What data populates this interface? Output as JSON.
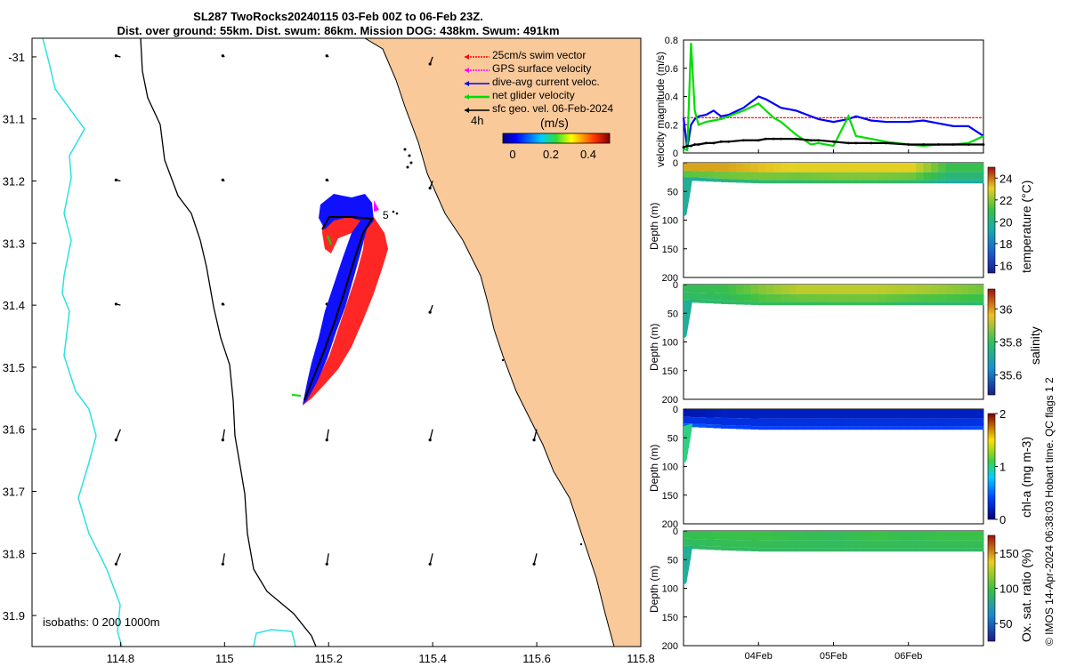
{
  "title": {
    "line1": "SL287 TwoRocks20240115 03-Feb 00Z to 06-Feb 23Z.",
    "line2": "Dist. over ground: 55km. Dist. swum: 86km. Mission DOG: 438km. Swum: 491km"
  },
  "footer_note": "© IMOS 14-Apr-2024 06:38:03 Hobart time. QC flags 1  2",
  "colors": {
    "land": "#f9c99a",
    "coast": "#000000",
    "isobath_0": "#000000",
    "isobath_200": "#000000",
    "isobath_1000": "#2fe0e0",
    "swim": "#ff0000",
    "gps": "#ff00ff",
    "current": "#0000ff",
    "net": "#00dd00",
    "geo": "#000000",
    "profile_mean": "#000000"
  },
  "map": {
    "xaxis": {
      "ticks": [
        114.8,
        115,
        115.2,
        115.4,
        115.6,
        115.8
      ],
      "labels": [
        "114.8",
        "115",
        "115.2",
        "115.4",
        "115.6",
        "115.8"
      ],
      "range": [
        114.63,
        115.8
      ]
    },
    "yaxis": {
      "ticks": [
        -31,
        -31.1,
        -31.2,
        -31.3,
        -31.4,
        -31.5,
        -31.6,
        -31.7,
        -31.8,
        -31.9
      ],
      "labels": [
        "-31",
        "31.1",
        "31.2",
        "31.3",
        "31.4",
        "31.5",
        "31.6",
        "31.7",
        "31.8",
        "31.9"
      ],
      "range": [
        -31.95,
        -30.97
      ]
    },
    "legend": [
      "25cm/s swim vector",
      "GPS surface velocity",
      "dive-avg current veloc.",
      "net glider velocity",
      "sfc geo. vel. 06-Feb-2024"
    ],
    "colorbar": {
      "title": "(m/s)",
      "ticks": [
        "0",
        "0.2",
        "0.4"
      ],
      "range": [
        0,
        0.5
      ]
    },
    "time_step_label": "4h",
    "marker_label": "5",
    "isobaths_label": "isobaths: 0   200  1000m"
  },
  "chart_data": [
    {
      "type": "line",
      "title": "",
      "ylabel": "velocity magnitude (m/s)",
      "ylim": [
        0,
        0.8
      ],
      "yticks": [
        "0",
        "0.2",
        "0.4",
        "0.6",
        "0.8"
      ],
      "x_days": [
        0,
        0.05,
        0.1,
        0.15,
        0.2,
        0.3,
        0.4,
        0.5,
        0.6,
        0.8,
        1.0,
        1.1,
        1.2,
        1.3,
        1.5,
        1.7,
        1.8,
        2.0,
        2.2,
        2.3,
        2.5,
        2.7,
        3.0,
        3.2,
        3.4,
        3.6,
        3.8,
        4.0
      ],
      "series": [
        {
          "color": "#ff0000",
          "values": [
            0.25,
            0.25,
            0.25,
            0.25,
            0.25,
            0.25,
            0.25,
            0.25,
            0.25,
            0.25,
            0.25,
            0.25,
            0.25,
            0.25,
            0.25,
            0.25,
            0.25,
            0.25,
            0.25,
            0.25,
            0.25,
            0.25,
            0.25,
            0.25,
            0.25,
            0.25,
            0.25,
            0.25
          ]
        },
        {
          "color": "#0000ff",
          "values": [
            0.25,
            0.03,
            0.2,
            0.24,
            0.26,
            0.27,
            0.3,
            0.26,
            0.27,
            0.32,
            0.4,
            0.38,
            0.35,
            0.32,
            0.3,
            0.26,
            0.24,
            0.22,
            0.24,
            0.26,
            0.23,
            0.22,
            0.22,
            0.23,
            0.21,
            0.19,
            0.19,
            0.12
          ]
        },
        {
          "color": "#00dd00",
          "values": [
            0.03,
            0.02,
            0.78,
            0.3,
            0.2,
            0.22,
            0.23,
            0.24,
            0.26,
            0.3,
            0.35,
            0.3,
            0.25,
            0.22,
            0.13,
            0.06,
            0.07,
            0.05,
            0.26,
            0.12,
            0.1,
            0.08,
            0.06,
            0.05,
            0.06,
            0.06,
            0.07,
            0.12
          ]
        },
        {
          "color": "#000000",
          "values": [
            0.04,
            0.05,
            0.05,
            0.06,
            0.06,
            0.07,
            0.07,
            0.08,
            0.08,
            0.09,
            0.09,
            0.1,
            0.1,
            0.1,
            0.1,
            0.09,
            0.09,
            0.08,
            0.07,
            0.07,
            0.07,
            0.07,
            0.06,
            0.06,
            0.06,
            0.06,
            0.06,
            0.06
          ]
        }
      ]
    },
    {
      "type": "heatmap",
      "title": "",
      "ylabel": "Depth (m)",
      "clabel": "temperature (°C)",
      "ylim": [
        0,
        200
      ],
      "yticks": [
        "0",
        "50",
        "100",
        "150",
        "200"
      ],
      "cticks": [
        "16",
        "18",
        "20",
        "22",
        "24"
      ],
      "crange": [
        15.3,
        25
      ],
      "x_days": [
        0,
        0.5,
        1,
        1.5,
        2,
        2.5,
        3,
        3.5,
        4
      ],
      "surface_values": [
        23.5,
        23.5,
        23.2,
        23.0,
        23.0,
        23.0,
        23.0,
        21.0,
        21.0
      ],
      "bottom_values": [
        19.5,
        20.0,
        20.5,
        20.5,
        20.8,
        20.8,
        20.5,
        19.5,
        19.5
      ],
      "mixed_depth": [
        25,
        28,
        30,
        30,
        30,
        30,
        30,
        30,
        30
      ]
    },
    {
      "type": "heatmap",
      "title": "",
      "ylabel": "Depth (m)",
      "clabel": "salinity",
      "ylim": [
        0,
        200
      ],
      "yticks": [
        "0",
        "50",
        "100",
        "150",
        "200"
      ],
      "cticks": [
        "35.6",
        "35.8",
        "36"
      ],
      "crange": [
        35.48,
        36.12
      ],
      "x_days": [
        0,
        0.5,
        1,
        1.5,
        2,
        2.5,
        3,
        3.5,
        4
      ],
      "surface_values": [
        35.84,
        35.86,
        35.92,
        35.96,
        35.96,
        35.96,
        35.95,
        35.93,
        35.9
      ],
      "bottom_values": [
        35.82,
        35.82,
        35.84,
        35.84,
        35.85,
        35.85,
        35.82,
        35.82,
        35.82
      ],
      "mixed_depth": [
        25,
        28,
        30,
        30,
        30,
        30,
        30,
        30,
        30
      ]
    },
    {
      "type": "heatmap",
      "title": "",
      "ylabel": "Depth (m)",
      "clabel": "chl-a (mg m-3)",
      "ylim": [
        0,
        200
      ],
      "yticks": [
        "0",
        "50",
        "100",
        "150",
        "200"
      ],
      "cticks": [
        "0",
        "1",
        "2"
      ],
      "crange": [
        0,
        2
      ],
      "x_days": [
        0,
        0.5,
        1,
        1.5,
        2,
        2.5,
        3,
        3.5,
        4
      ],
      "surface_values": [
        0.15,
        0.2,
        0.2,
        0.2,
        0.2,
        0.2,
        0.2,
        0.2,
        0.2
      ],
      "bottom_values": [
        0.5,
        0.4,
        0.4,
        0.4,
        0.4,
        0.4,
        0.4,
        0.4,
        0.45
      ],
      "mixed_depth": [
        25,
        28,
        30,
        30,
        30,
        30,
        30,
        30,
        30
      ]
    },
    {
      "type": "heatmap",
      "title": "",
      "ylabel": "Depth (m)",
      "clabel": "Ox. sat. ratio (%)",
      "ylim": [
        0,
        200
      ],
      "yticks": [
        "0",
        "50",
        "100",
        "150",
        "200"
      ],
      "cticks": [
        "50",
        "100",
        "150"
      ],
      "crange": [
        25,
        175
      ],
      "x_days": [
        0,
        0.5,
        1,
        1.5,
        2,
        2.5,
        3,
        3.5,
        4
      ],
      "surface_values": [
        112,
        115,
        115,
        112,
        110,
        115,
        112,
        115,
        115
      ],
      "bottom_values": [
        105,
        108,
        108,
        108,
        108,
        108,
        108,
        108,
        108
      ],
      "mixed_depth": [
        25,
        28,
        30,
        30,
        30,
        30,
        30,
        30,
        30
      ],
      "xticks": [
        "04Feb",
        "05Feb",
        "06Feb"
      ],
      "xtick_days": [
        1,
        2,
        3
      ]
    }
  ]
}
